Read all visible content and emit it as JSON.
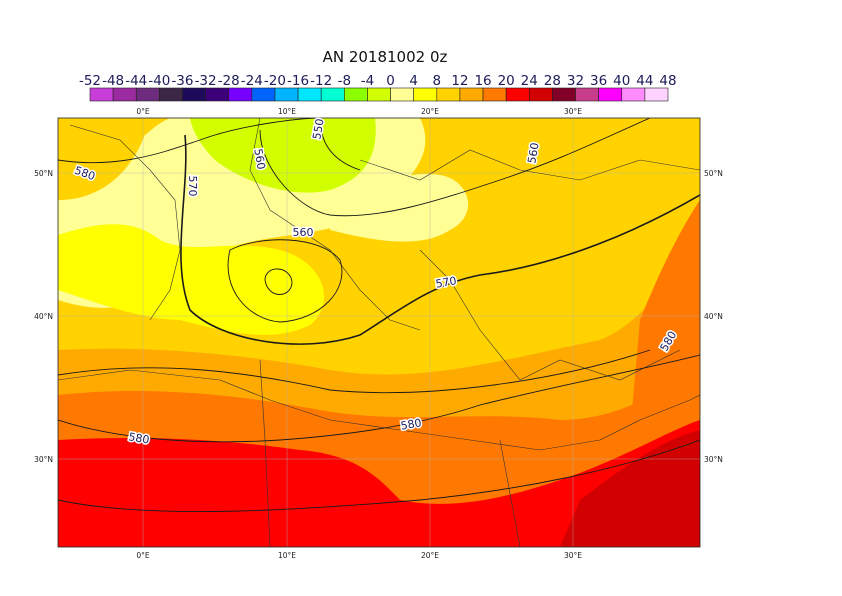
{
  "header": {
    "title": "AN  20181002 0z"
  },
  "colorbar": {
    "labels": [
      -52,
      -48,
      -44,
      -40,
      -36,
      -32,
      -28,
      -24,
      -20,
      -16,
      -12,
      -8,
      -4,
      0,
      4,
      8,
      12,
      16,
      20,
      24,
      28,
      32,
      36,
      40,
      44,
      48
    ],
    "colors": [
      "#c83ed8",
      "#9c2aa0",
      "#6e2c7e",
      "#3c2846",
      "#1e0a5a",
      "#3c0078",
      "#7800ff",
      "#0064ff",
      "#00b4ff",
      "#00e6ff",
      "#00ffd2",
      "#8cff00",
      "#d2ff00",
      "#ffff96",
      "#ffff00",
      "#ffd200",
      "#ffaa00",
      "#ff7800",
      "#ff0000",
      "#d20000",
      "#820028",
      "#c83c8c",
      "#ff00ff",
      "#ff8cff",
      "#ffd2ff"
    ]
  },
  "map": {
    "lon_labels": [
      "0°E",
      "10°E",
      "20°E",
      "30°E"
    ],
    "lat_labels": [
      "50°N",
      "40°N",
      "30°N"
    ],
    "contour_labels": [
      "580",
      "570",
      "560",
      "550",
      "560",
      "560",
      "570",
      "580",
      "580",
      "580"
    ]
  }
}
